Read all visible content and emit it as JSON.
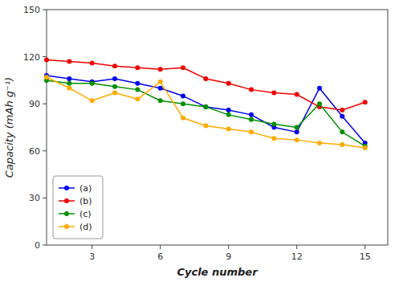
{
  "chart_data": {
    "type": "line",
    "xlabel": "Cycle number",
    "ylabel": "Capacity (mAh g⁻¹)",
    "x": [
      1,
      2,
      3,
      4,
      5,
      6,
      7,
      8,
      9,
      10,
      11,
      12,
      13,
      14,
      15
    ],
    "series": [
      {
        "name": "(a)",
        "color": "#0000ee",
        "values": [
          108,
          106,
          104,
          106,
          103,
          100,
          95,
          88,
          86,
          83,
          75,
          72,
          100,
          82,
          65
        ]
      },
      {
        "name": "(b)",
        "color": "#ee0000",
        "values": [
          118,
          117,
          116,
          114,
          113,
          112,
          113,
          106,
          103,
          99,
          97,
          96,
          88,
          86,
          91
        ]
      },
      {
        "name": "(c)",
        "color": "#009000",
        "values": [
          105,
          103,
          103,
          101,
          99,
          92,
          90,
          88,
          83,
          80,
          77,
          75,
          90,
          72,
          63
        ]
      },
      {
        "name": "(d)",
        "color": "#ffaa00",
        "values": [
          107,
          100,
          92,
          97,
          93,
          104,
          81,
          76,
          74,
          72,
          68,
          67,
          65,
          64,
          62
        ]
      }
    ],
    "xlim": [
      1,
      16
    ],
    "ylim": [
      0,
      150
    ],
    "xticks": [
      3,
      6,
      9,
      12,
      15
    ],
    "yticks": [
      0,
      30,
      60,
      90,
      120,
      150
    ],
    "marker": "circle",
    "legend": "lower left"
  }
}
